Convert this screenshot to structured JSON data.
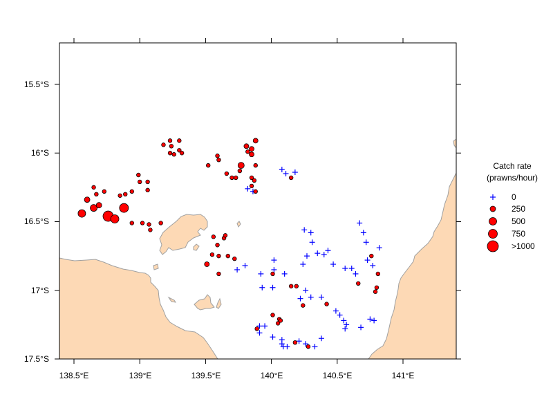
{
  "chart_data": {
    "type": "scatter",
    "title": "",
    "xlabel": "",
    "ylabel": "",
    "xlim": [
      138.39,
      141.42
    ],
    "ylim": [
      -17.5,
      -15.2
    ],
    "x_ticks": [
      138.5,
      139.0,
      139.5,
      140.0,
      140.5,
      141.0
    ],
    "x_tick_labels": [
      "138.5°E",
      "139°E",
      "139.5°E",
      "140°E",
      "140.5°E",
      "141°E"
    ],
    "y_ticks": [
      -15.5,
      -16.0,
      -16.5,
      -17.0,
      -17.5
    ],
    "y_tick_labels": [
      "15.5°S",
      "16°S",
      "16.5°S",
      "17°S",
      "17.5°S"
    ],
    "grid": false,
    "legend": {
      "title_line1": "Catch rate",
      "title_line2": "(prawns/hour)",
      "position": "right",
      "entries": [
        {
          "label": "0",
          "symbol": "plus",
          "size": 0
        },
        {
          "label": "250",
          "symbol": "circle",
          "size": 1
        },
        {
          "label": "500",
          "symbol": "circle",
          "size": 2
        },
        {
          "label": "750",
          "symbol": "circle",
          "size": 3
        },
        {
          "label": ">1000",
          "symbol": "circle",
          "size": 4
        }
      ]
    },
    "colors": {
      "land": "#fdd9b5",
      "coast": "#a0a0a0",
      "zero_marker": "#0000ff",
      "catch_fill": "#ff0000",
      "catch_edge": "#000000"
    },
    "series": [
      {
        "name": "zero catch",
        "marker": "plus",
        "points": [
          [
            140.08,
            -16.12
          ],
          [
            140.11,
            -16.15
          ],
          [
            140.18,
            -16.14
          ],
          [
            139.82,
            -16.26
          ],
          [
            139.86,
            -16.28
          ],
          [
            140.25,
            -16.56
          ],
          [
            140.3,
            -16.58
          ],
          [
            140.31,
            -16.65
          ],
          [
            140.43,
            -16.71
          ],
          [
            140.4,
            -16.74
          ],
          [
            140.67,
            -16.51
          ],
          [
            140.7,
            -16.58
          ],
          [
            140.72,
            -16.65
          ],
          [
            140.82,
            -16.69
          ],
          [
            140.73,
            -16.78
          ],
          [
            140.77,
            -16.82
          ],
          [
            140.61,
            -16.84
          ],
          [
            140.64,
            -16.88
          ],
          [
            140.56,
            -16.84
          ],
          [
            139.74,
            -16.85
          ],
          [
            139.8,
            -16.82
          ],
          [
            139.92,
            -16.88
          ],
          [
            140.02,
            -16.78
          ],
          [
            140.02,
            -16.85
          ],
          [
            140.1,
            -16.88
          ],
          [
            140.24,
            -16.81
          ],
          [
            140.27,
            -16.75
          ],
          [
            140.47,
            -16.81
          ],
          [
            140.35,
            -16.73
          ],
          [
            139.93,
            -16.98
          ],
          [
            140.01,
            -16.98
          ],
          [
            140.26,
            -17.0
          ],
          [
            140.22,
            -17.06
          ],
          [
            140.3,
            -17.05
          ],
          [
            140.38,
            -17.05
          ],
          [
            140.49,
            -17.15
          ],
          [
            140.52,
            -17.18
          ],
          [
            140.55,
            -17.22
          ],
          [
            140.57,
            -17.25
          ],
          [
            140.56,
            -17.28
          ],
          [
            140.68,
            -17.27
          ],
          [
            140.75,
            -17.21
          ],
          [
            140.78,
            -17.22
          ],
          [
            139.91,
            -17.26
          ],
          [
            139.95,
            -17.26
          ],
          [
            139.91,
            -17.31
          ],
          [
            140.01,
            -17.34
          ],
          [
            140.08,
            -17.36
          ],
          [
            140.08,
            -17.39
          ],
          [
            140.09,
            -17.41
          ],
          [
            140.12,
            -17.41
          ],
          [
            140.21,
            -17.37
          ],
          [
            140.26,
            -17.39
          ],
          [
            140.33,
            -17.41
          ],
          [
            140.38,
            -17.35
          ]
        ]
      },
      {
        "name": "positive catch",
        "marker": "circle",
        "points": [
          [
            138.65,
            -16.25
          ],
          [
            138.67,
            -16.3
          ],
          [
            138.73,
            -16.28
          ],
          [
            138.6,
            -16.34
          ],
          [
            138.56,
            -16.44
          ],
          [
            138.65,
            -16.4
          ],
          [
            138.69,
            -16.38
          ],
          [
            138.76,
            -16.46
          ],
          [
            138.81,
            -16.48
          ],
          [
            138.88,
            -16.4
          ],
          [
            138.89,
            -16.3
          ],
          [
            138.85,
            -16.31
          ],
          [
            138.94,
            -16.28
          ],
          [
            138.99,
            -16.16
          ],
          [
            139.0,
            -16.21
          ],
          [
            139.06,
            -16.21
          ],
          [
            139.06,
            -16.27
          ],
          [
            138.94,
            -16.51
          ],
          [
            139.02,
            -16.51
          ],
          [
            139.07,
            -16.52
          ],
          [
            139.08,
            -16.56
          ],
          [
            139.16,
            -16.51
          ],
          [
            139.18,
            -15.94
          ],
          [
            139.23,
            -15.91
          ],
          [
            139.3,
            -15.91
          ],
          [
            139.24,
            -15.95
          ],
          [
            139.23,
            -16.0
          ],
          [
            139.3,
            -15.98
          ],
          [
            139.32,
            -16.0
          ],
          [
            139.26,
            -16.01
          ],
          [
            139.52,
            -16.09
          ],
          [
            139.59,
            -16.02
          ],
          [
            139.6,
            -16.05
          ],
          [
            139.66,
            -16.15
          ],
          [
            139.7,
            -16.18
          ],
          [
            139.73,
            -16.18
          ],
          [
            139.77,
            -16.09
          ],
          [
            139.76,
            -16.13
          ],
          [
            139.81,
            -15.95
          ],
          [
            139.82,
            -15.99
          ],
          [
            139.85,
            -15.97
          ],
          [
            139.85,
            -16.01
          ],
          [
            139.88,
            -15.91
          ],
          [
            139.88,
            -16.09
          ],
          [
            139.85,
            -16.18
          ],
          [
            139.87,
            -16.2
          ],
          [
            139.85,
            -16.24
          ],
          [
            139.88,
            -16.28
          ],
          [
            140.15,
            -16.18
          ],
          [
            139.56,
            -16.61
          ],
          [
            139.64,
            -16.62
          ],
          [
            139.65,
            -16.6
          ],
          [
            139.59,
            -16.67
          ],
          [
            139.55,
            -16.74
          ],
          [
            139.6,
            -16.75
          ],
          [
            139.67,
            -16.75
          ],
          [
            139.72,
            -16.77
          ],
          [
            139.51,
            -16.81
          ],
          [
            139.6,
            -16.88
          ],
          [
            140.01,
            -16.88
          ],
          [
            140.15,
            -16.97
          ],
          [
            140.19,
            -16.97
          ],
          [
            140.24,
            -17.11
          ],
          [
            140.42,
            -17.1
          ],
          [
            140.01,
            -17.18
          ],
          [
            140.06,
            -17.21
          ],
          [
            140.05,
            -17.24
          ],
          [
            140.07,
            -17.22
          ],
          [
            139.89,
            -17.28
          ],
          [
            140.18,
            -17.38
          ],
          [
            140.28,
            -17.41
          ],
          [
            140.66,
            -16.95
          ],
          [
            140.76,
            -16.75
          ],
          [
            140.81,
            -16.88
          ],
          [
            140.8,
            -16.98
          ],
          [
            140.79,
            -17.01
          ]
        ]
      }
    ]
  }
}
